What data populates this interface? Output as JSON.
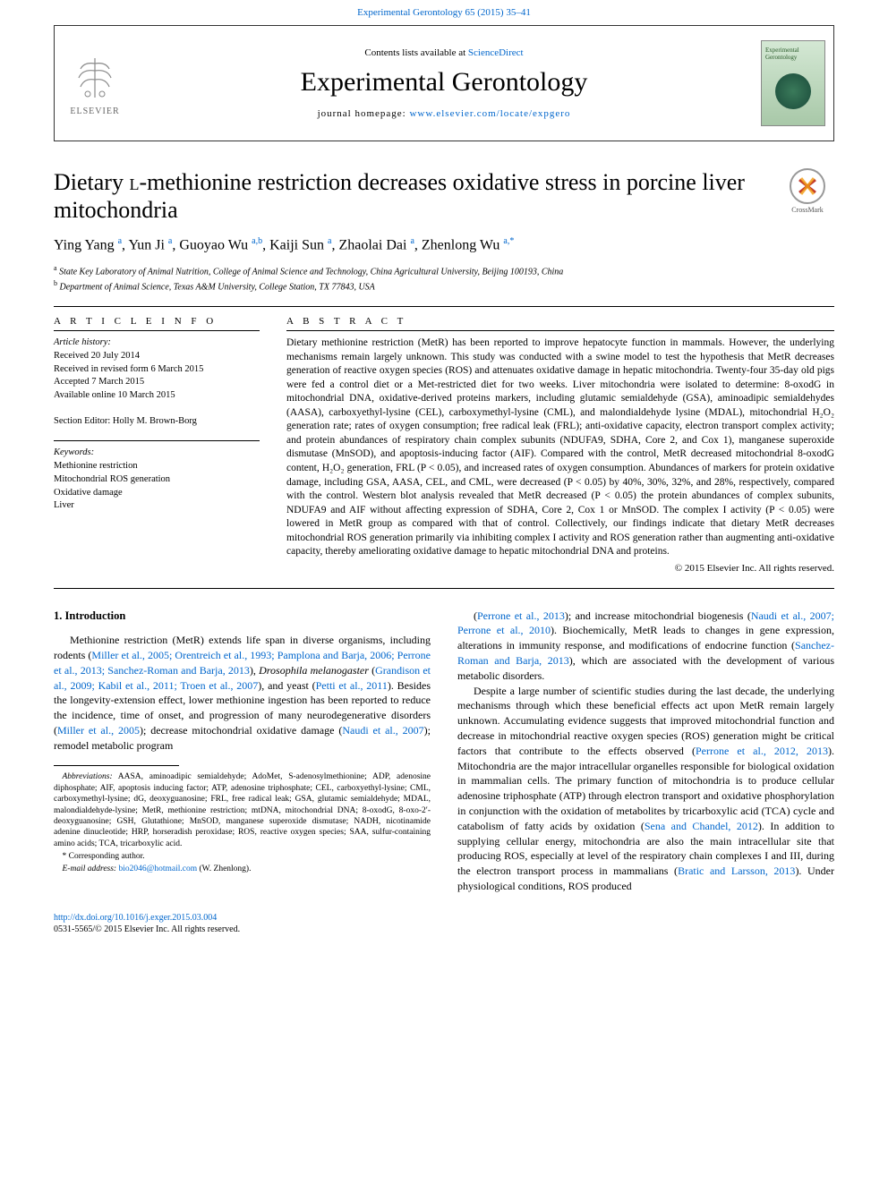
{
  "top_link": {
    "text": "Experimental Gerontology 65 (2015) 35–41",
    "href": "#"
  },
  "header": {
    "contents_prefix": "Contents lists available at ",
    "contents_link": "ScienceDirect",
    "journal_title": "Experimental Gerontology",
    "homepage_prefix": "journal homepage: ",
    "homepage_link": "www.elsevier.com/locate/expgero",
    "elsevier_label": "ELSEVIER",
    "cover_label": "Experimental Gerontology"
  },
  "crossmark_label": "CrossMark",
  "article": {
    "title_pre": "Dietary ",
    "title_sc": "l",
    "title_post": "-methionine restriction decreases oxidative stress in porcine liver mitochondria",
    "authors_html": "Ying Yang <sup>a</sup>, Yun Ji <sup>a</sup>, Guoyao Wu <sup>a,b</sup>, Kaiji Sun <sup>a</sup>, Zhaolai Dai <sup>a</sup>, Zhenlong Wu <sup>a,*</sup>",
    "affiliations": [
      "a  State Key Laboratory of Animal Nutrition, College of Animal Science and Technology, China Agricultural University, Beijing 100193, China",
      "b  Department of Animal Science, Texas A&M University, College Station, TX 77843, USA"
    ]
  },
  "info": {
    "article_info_heading": "A R T I C L E   I N F O",
    "history_label": "Article history:",
    "history_lines": [
      "Received 20 July 2014",
      "Received in revised form 6 March 2015",
      "Accepted 7 March 2015",
      "Available online 10 March 2015"
    ],
    "section_editor_label": "Section Editor: Holly M. Brown-Borg",
    "keywords_label": "Keywords:",
    "keywords": [
      "Methionine restriction",
      "Mitochondrial ROS generation",
      "Oxidative damage",
      "Liver"
    ]
  },
  "abstract": {
    "heading": "A B S T R A C T",
    "text": "Dietary methionine restriction (MetR) has been reported to improve hepatocyte function in mammals. However, the underlying mechanisms remain largely unknown. This study was conducted with a swine model to test the hypothesis that MetR decreases generation of reactive oxygen species (ROS) and attenuates oxidative damage in hepatic mitochondria. Twenty-four 35-day old pigs were fed a control diet or a Met-restricted diet for two weeks. Liver mitochondria were isolated to determine: 8-oxodG in mitochondrial DNA, oxidative-derived proteins markers, including glutamic semialdehyde (GSA), aminoadipic semialdehydes (AASA), carboxyethyl-lysine (CEL), carboxymethyl-lysine (CML), and malondialdehyde lysine (MDAL), mitochondrial H₂O₂ generation rate; rates of oxygen consumption; free radical leak (FRL); anti-oxidative capacity, electron transport complex activity; and protein abundances of respiratory chain complex subunits (NDUFA9, SDHA, Core 2, and Cox 1), manganese superoxide dismutase (MnSOD), and apoptosis-inducing factor (AIF). Compared with the control, MetR decreased mitochondrial 8-oxodG content, H₂O₂ generation, FRL (P < 0.05), and increased rates of oxygen consumption. Abundances of markers for protein oxidative damage, including GSA, AASA, CEL, and CML, were decreased (P < 0.05) by 40%, 30%, 32%, and 28%, respectively, compared with the control. Western blot analysis revealed that MetR decreased (P < 0.05) the protein abundances of complex subunits, NDUFA9 and AIF without affecting expression of SDHA, Core 2, Cox 1 or MnSOD. The complex I activity (P < 0.05) were lowered in MetR group as compared with that of control. Collectively, our findings indicate that dietary MetR decreases mitochondrial ROS generation primarily via inhibiting complex I activity and ROS generation rather than augmenting anti-oxidative capacity, thereby ameliorating oxidative damage to hepatic mitochondrial DNA and proteins.",
    "copyright": "© 2015 Elsevier Inc. All rights reserved."
  },
  "intro": {
    "heading": "1. Introduction",
    "p1_pre": "Methionine restriction (MetR) extends life span in diverse organisms, including rodents (",
    "p1_link1": "Miller et al., 2005; Orentreich et al., 1993; Pamplona and Barja, 2006; Perrone et al., 2013; Sanchez-Roman and Barja, 2013",
    "p1_mid1": "), ",
    "p1_ital1": "Drosophila melanogaster",
    "p1_mid2": " (",
    "p1_link2": "Grandison et al., 2009; Kabil et al., 2011; Troen et al., 2007",
    "p1_mid3": "), and yeast (",
    "p1_link3": "Petti et al., 2011",
    "p1_mid4": "). Besides the longevity-extension effect, lower methionine ingestion has been reported to reduce the incidence, time of onset, and progression of many neurodegenerative disorders (",
    "p1_link4": "Miller et al., 2005",
    "p1_mid5": "); decrease mitochondrial oxidative damage (",
    "p1_link5": "Naudi et al., 2007",
    "p1_mid6": "); remodel metabolic program",
    "p2_pre": "(",
    "p2_link1": "Perrone et al., 2013",
    "p2_mid1": "); and increase mitochondrial biogenesis (",
    "p2_link2": "Naudi et al., 2007; Perrone et al., 2010",
    "p2_mid2": "). Biochemically, MetR leads to changes in gene expression, alterations in immunity response, and modifications of endocrine function (",
    "p2_link3": "Sanchez-Roman and Barja, 2013",
    "p2_mid3": "), which are associated with the development of various metabolic disorders.",
    "p3_pre": "Despite a large number of scientific studies during the last decade, the underlying mechanisms through which these beneficial effects act upon MetR remain largely unknown. Accumulating evidence suggests that improved mitochondrial function and decrease in mitochondrial reactive oxygen species (ROS) generation might be critical factors that contribute to the effects observed (",
    "p3_link1": "Perrone et al., 2012, 2013",
    "p3_mid1": "). Mitochondria are the major intracellular organelles responsible for biological oxidation in mammalian cells. The primary function of mitochondria is to produce cellular adenosine triphosphate (ATP) through electron transport and oxidative phosphorylation in conjunction with the oxidation of metabolites by tricarboxylic acid (TCA) cycle and catabolism of fatty acids by oxidation (",
    "p3_link2": "Sena and Chandel, 2012",
    "p3_mid2": "). In addition to supplying cellular energy, mitochondria are also the main intracellular site that producing ROS, especially at level of the respiratory chain complexes I and III, during the electron transport process in mammalians (",
    "p3_link3": "Bratic and Larsson, 2013",
    "p3_mid3": "). Under physiological conditions, ROS produced"
  },
  "footnotes": {
    "abbrev_label": "Abbreviations:",
    "abbrev_text": " AASA, aminoadipic semialdehyde; AdoMet, S-adenosylmethionine; ADP, adenosine diphosphate; AIF, apoptosis inducing factor; ATP, adenosine triphosphate; CEL, carboxyethyl-lysine; CML, carboxymethyl-lysine; dG, deoxyguanosine; FRL, free radical leak; GSA, glutamic semialdehyde; MDAL, malondialdehyde-lysine; MetR, methionine restriction; mtDNA, mitochondrial DNA; 8-oxodG, 8-oxo-2′-deoxyguanosine; GSH, Glutathione; MnSOD, manganese superoxide dismutase; NADH, nicotinamide adenine dinucleotide; HRP, horseradish peroxidase; ROS, reactive oxygen species; SAA, sulfur-containing amino acids; TCA, tricarboxylic acid.",
    "corr_label": "* Corresponding author.",
    "email_label": "E-mail address:",
    "email": "bio2046@hotmail.com",
    "email_who": " (W. Zhenlong)."
  },
  "footer": {
    "doi": "http://dx.doi.org/10.1016/j.exger.2015.03.004",
    "issn_line": "0531-5565/© 2015 Elsevier Inc. All rights reserved."
  },
  "colors": {
    "link": "#0066cc",
    "text": "#000000",
    "background": "#ffffff"
  }
}
